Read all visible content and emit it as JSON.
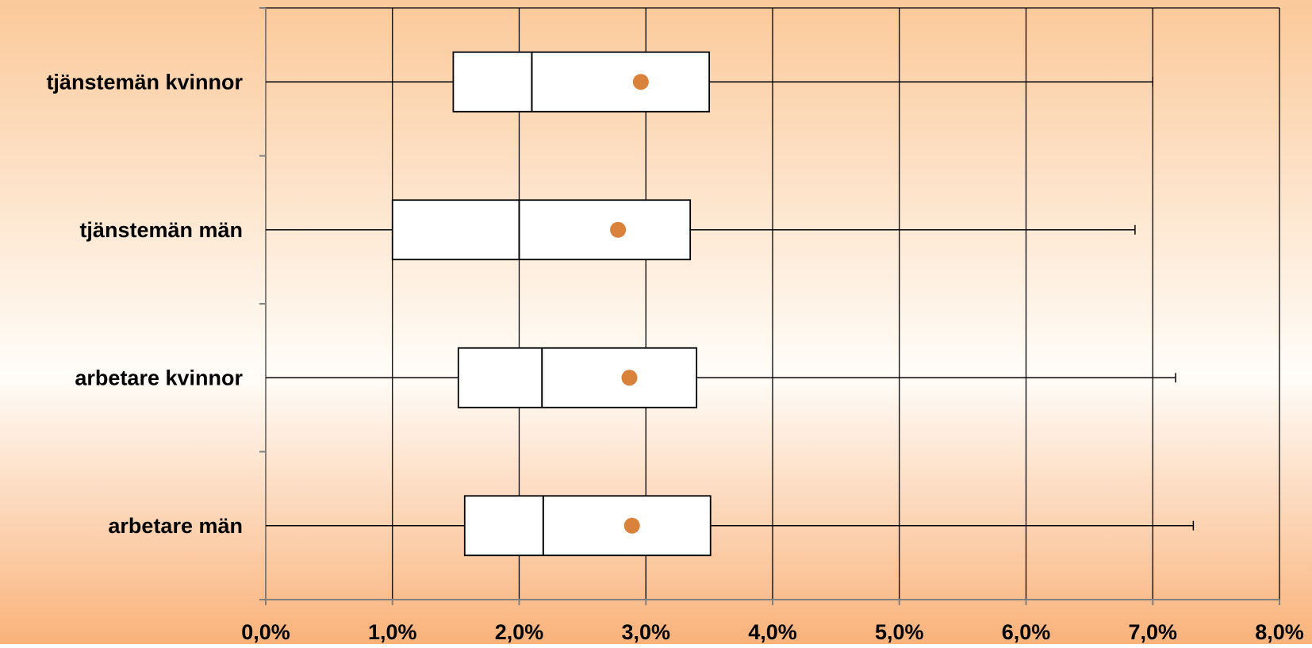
{
  "chart_data": {
    "type": "boxplot",
    "orientation": "horizontal",
    "title": "",
    "xlabel": "",
    "ylabel": "",
    "xlim": [
      0,
      8
    ],
    "x_ticks": [
      0,
      1,
      2,
      3,
      4,
      5,
      6,
      7,
      8
    ],
    "x_tick_labels": [
      "0,0%",
      "1,0%",
      "2,0%",
      "3,0%",
      "4,0%",
      "5,0%",
      "6,0%",
      "7,0%",
      "8,0%"
    ],
    "grid": "vertical",
    "categories": [
      "tjänstemän kvinnor",
      "tjänstemän män",
      "arbetare kvinnor",
      "arbetare män"
    ],
    "series": [
      {
        "q1": 1.48,
        "median": 2.1,
        "q3": 3.5,
        "mean": 2.96,
        "whisker_low": 0.0,
        "whisker_high": 7.0
      },
      {
        "q1": 1.0,
        "median": 2.0,
        "q3": 3.35,
        "mean": 2.78,
        "whisker_low": 0.0,
        "whisker_high": 6.86
      },
      {
        "q1": 1.52,
        "median": 2.18,
        "q3": 3.4,
        "mean": 2.87,
        "whisker_low": 0.0,
        "whisker_high": 7.18
      },
      {
        "q1": 1.57,
        "median": 2.19,
        "q3": 3.51,
        "mean": 2.89,
        "whisker_low": 0.0,
        "whisker_high": 7.32
      }
    ],
    "colors": {
      "background_top": "#fbc99a",
      "background_mid": "#fffdf9",
      "background_bottom": "#f9b27a",
      "box_fill": "#ffffff",
      "mean_marker": "#d9823b",
      "lines": "#000000",
      "axis": "#808080"
    }
  }
}
